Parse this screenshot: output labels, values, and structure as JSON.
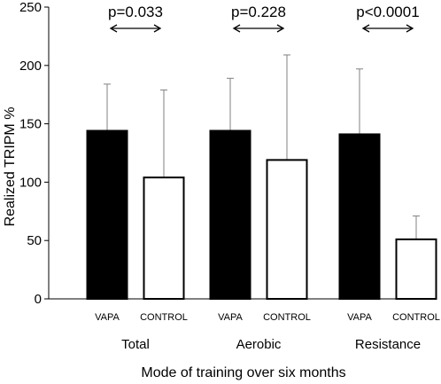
{
  "chart_data": {
    "type": "bar",
    "xlabel": "Mode of training over six months",
    "ylabel": "Realized TRIPM %",
    "ylim": [
      0,
      250
    ],
    "yticks": [
      "0",
      "50",
      "100",
      "150",
      "200",
      "250"
    ],
    "grid": false,
    "bar_colors": {
      "VAPA": "#000000",
      "CONTROL": "#ffffff"
    },
    "groups": [
      {
        "label": "Total",
        "p_value": "p=0.033",
        "bars": [
          {
            "label": "VAPA",
            "value": 144,
            "error_upper": 184
          },
          {
            "label": "CONTROL",
            "value": 104,
            "error_upper": 179
          }
        ]
      },
      {
        "label": "Aerobic",
        "p_value": "p=0.228",
        "bars": [
          {
            "label": "VAPA",
            "value": 144,
            "error_upper": 189
          },
          {
            "label": "CONTROL",
            "value": 119,
            "error_upper": 209
          }
        ]
      },
      {
        "label": "Resistance",
        "p_value": "p<0.0001",
        "bars": [
          {
            "label": "VAPA",
            "value": 141,
            "error_upper": 197
          },
          {
            "label": "CONTROL",
            "value": 51,
            "error_upper": 71
          }
        ]
      }
    ]
  }
}
